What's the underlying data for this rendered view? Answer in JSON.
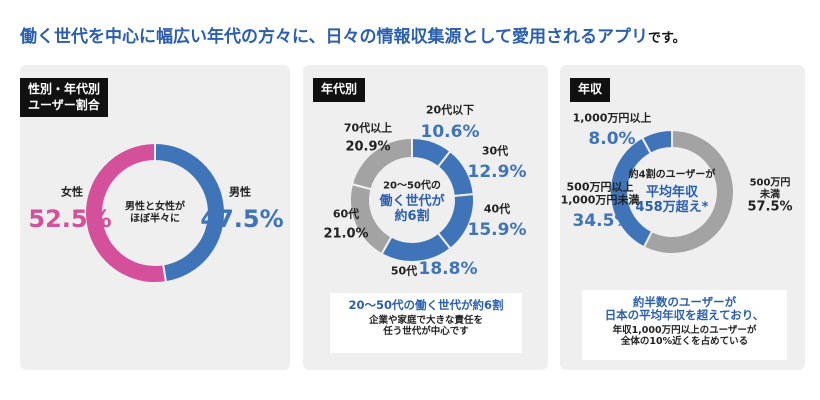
{
  "headline": {
    "main": "働く世代を中心に幅広い年代の方々に、日々の情報収集源として愛用されるアプリ",
    "tail": "です。"
  },
  "chart_data": [
    {
      "type": "donut",
      "title": "性別・年代別\nユーザー割合",
      "categories": [
        "男性",
        "女性"
      ],
      "values": [
        47.5,
        52.5
      ],
      "value_labels": [
        "47.5%",
        "52.5%"
      ],
      "colors": [
        "#3f74b8",
        "#d4509a"
      ],
      "center_text": [
        "男性と女性が\nほぼ半々に"
      ]
    },
    {
      "type": "donut",
      "title": "年代別",
      "categories": [
        "20代以下",
        "30代",
        "40代",
        "50代",
        "60代",
        "70代以上"
      ],
      "values": [
        10.6,
        12.9,
        15.9,
        18.8,
        21.0,
        20.9
      ],
      "value_labels": [
        "10.6%",
        "12.9%",
        "15.9%",
        "18.8%",
        "21.0%",
        "20.9%"
      ],
      "colors": [
        "#3f74b8",
        "#3f74b8",
        "#3f74b8",
        "#3f74b8",
        "#a3a3a3",
        "#a3a3a3"
      ],
      "center_text": [
        "20〜50代の",
        "働く世代が\n約6割"
      ],
      "callout": [
        "20〜50代の働く世代が約6割",
        "企業や家庭で大きな責任を\n任う世代が中心です"
      ]
    },
    {
      "type": "donut",
      "title": "年収",
      "categories": [
        "500万円未満",
        "500万円以上\n1,000万円未満",
        "1,000万円以上"
      ],
      "values": [
        57.5,
        34.5,
        8.0
      ],
      "value_labels": [
        "57.5%",
        "34.5%",
        "8.0%"
      ],
      "colors": [
        "#a3a3a3",
        "#3f74b8",
        "#3f74b8"
      ],
      "center_text": [
        "約4割のユーザーが",
        "平均年収\n458万超え*"
      ],
      "callout": [
        "約半数のユーザーが\n日本の平均年収を超えており、",
        "年収1,000万円以上のユーザーが\n全体の10%近くを占めている"
      ]
    }
  ]
}
